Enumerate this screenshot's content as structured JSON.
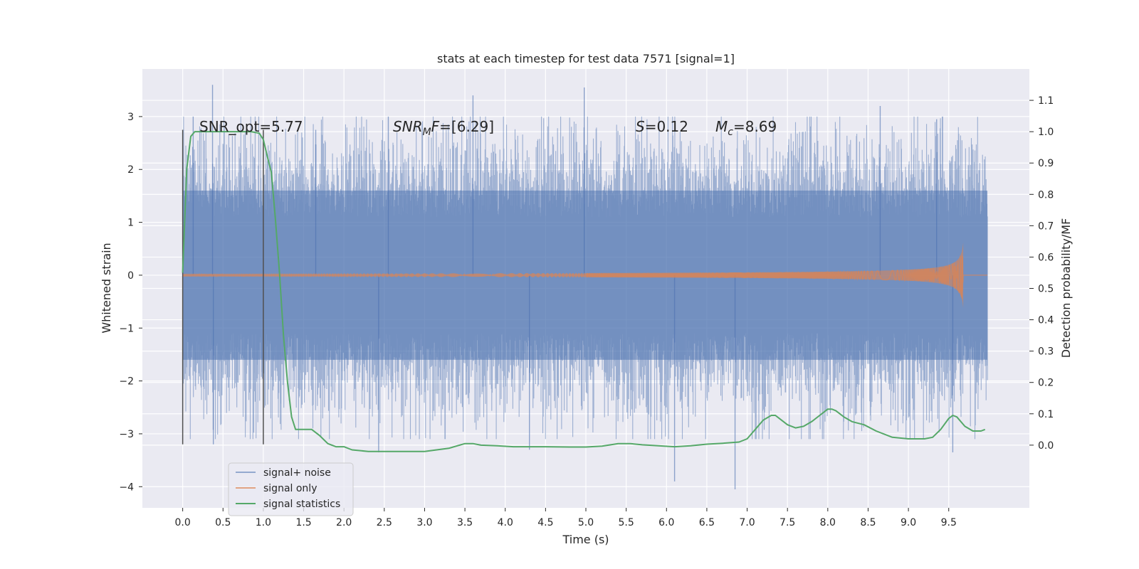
{
  "chart_data": {
    "type": "line",
    "title": "stats at each timestep for test data 7571 [signal=1]",
    "xlabel": "Time (s)",
    "ylabel_left": "Whitened strain",
    "ylabel_right": "Detection probability/MF",
    "xlim": [
      -0.5,
      10.5
    ],
    "ylim_left": [
      -4.4,
      3.9
    ],
    "ylim_right": [
      -0.2,
      1.2
    ],
    "x_ticks": [
      0.0,
      0.5,
      1.0,
      1.5,
      2.0,
      2.5,
      3.0,
      3.5,
      4.0,
      4.5,
      5.0,
      5.5,
      6.0,
      6.5,
      7.0,
      7.5,
      8.0,
      8.5,
      9.0,
      9.5
    ],
    "x_tick_labels": [
      "0.0",
      "0.5",
      "1.0",
      "1.5",
      "2.0",
      "2.5",
      "3.0",
      "3.5",
      "4.0",
      "4.5",
      "5.0",
      "5.5",
      "6.0",
      "6.5",
      "7.0",
      "7.5",
      "8.0",
      "8.5",
      "9.0",
      "9.5"
    ],
    "y_left_ticks": [
      3,
      2,
      1,
      0,
      -1,
      -2,
      -3,
      -4
    ],
    "y_left_tick_labels": [
      "3",
      "2",
      "1",
      "0",
      "−1",
      "−2",
      "−3",
      "−4"
    ],
    "y_right_ticks": [
      1.1,
      1.0,
      0.9,
      0.8,
      0.7,
      0.6,
      0.5,
      0.4,
      0.3,
      0.2,
      0.1,
      0.0
    ],
    "y_right_tick_labels": [
      "1.1",
      "1.0",
      "0.9",
      "0.8",
      "0.7",
      "0.6",
      "0.5",
      "0.4",
      "0.3",
      "0.2",
      "0.1",
      "0.0"
    ],
    "grid": true,
    "legend_position": "lower-left",
    "colors": {
      "noise": "#4c72b0",
      "signal": "#dd8452",
      "stat": "#55a868",
      "marker": "#505050",
      "background": "#eaeaf2"
    },
    "series": [
      {
        "name": "signal+ noise",
        "axis": "left",
        "x_range": [
          0.0,
          9.98
        ],
        "band_envelope_abs": 1.6,
        "peak_excursions": [
          {
            "x": 0.13,
            "y": 3.0
          },
          {
            "x": 0.37,
            "y": 3.6
          },
          {
            "x": 0.38,
            "y": -3.2
          },
          {
            "x": 1.65,
            "y": 2.75
          },
          {
            "x": 2.55,
            "y": 3.0
          },
          {
            "x": 2.43,
            "y": -3.35
          },
          {
            "x": 3.6,
            "y": 3.4
          },
          {
            "x": 4.3,
            "y": -3.3
          },
          {
            "x": 4.98,
            "y": 3.55
          },
          {
            "x": 6.1,
            "y": -3.9
          },
          {
            "x": 6.85,
            "y": -4.05
          },
          {
            "x": 8.65,
            "y": 3.2
          },
          {
            "x": 9.55,
            "y": -3.35
          },
          {
            "x": 9.35,
            "y": 2.95
          }
        ]
      },
      {
        "name": "signal only",
        "axis": "left",
        "x_range": [
          0.0,
          9.98
        ],
        "chirp_peak_time": 9.68,
        "chirp_peak_amplitude": 0.62
      },
      {
        "name": "signal statistics",
        "axis": "right",
        "x": [
          0.0,
          0.05,
          0.1,
          0.15,
          0.2,
          0.3,
          0.5,
          0.7,
          0.85,
          0.95,
          1.0,
          1.05,
          1.1,
          1.15,
          1.2,
          1.25,
          1.3,
          1.35,
          1.4,
          1.5,
          1.6,
          1.7,
          1.8,
          1.9,
          2.0,
          2.1,
          2.3,
          2.5,
          2.8,
          3.0,
          3.3,
          3.5,
          3.6,
          3.7,
          3.9,
          4.1,
          4.3,
          4.5,
          4.8,
          5.0,
          5.2,
          5.4,
          5.55,
          5.7,
          5.9,
          6.1,
          6.3,
          6.5,
          6.7,
          6.9,
          7.0,
          7.1,
          7.2,
          7.3,
          7.35,
          7.4,
          7.5,
          7.6,
          7.7,
          7.8,
          7.9,
          8.0,
          8.05,
          8.1,
          8.2,
          8.3,
          8.45,
          8.6,
          8.8,
          9.0,
          9.2,
          9.3,
          9.4,
          9.5,
          9.55,
          9.6,
          9.7,
          9.8,
          9.9,
          9.95
        ],
        "y": [
          0.55,
          0.88,
          0.985,
          1.0,
          1.0,
          1.0,
          1.0,
          1.0,
          1.0,
          0.995,
          0.975,
          0.92,
          0.87,
          0.72,
          0.55,
          0.35,
          0.2,
          0.09,
          0.05,
          0.05,
          0.05,
          0.03,
          0.005,
          -0.005,
          -0.005,
          -0.015,
          -0.02,
          -0.02,
          -0.02,
          -0.02,
          -0.01,
          0.005,
          0.005,
          0.0,
          -0.002,
          -0.005,
          -0.005,
          -0.005,
          -0.006,
          -0.006,
          -0.003,
          0.005,
          0.005,
          0.001,
          -0.002,
          -0.005,
          -0.002,
          0.003,
          0.006,
          0.01,
          0.02,
          0.05,
          0.08,
          0.095,
          0.095,
          0.085,
          0.065,
          0.055,
          0.06,
          0.075,
          0.095,
          0.115,
          0.115,
          0.11,
          0.09,
          0.075,
          0.065,
          0.045,
          0.025,
          0.02,
          0.02,
          0.025,
          0.05,
          0.085,
          0.095,
          0.09,
          0.06,
          0.045,
          0.045,
          0.05
        ]
      }
    ],
    "markers": [
      {
        "x": 0.0,
        "y_range": [
          -3.2,
          2.75
        ]
      },
      {
        "x": 1.0,
        "y_range": [
          -3.2,
          2.75
        ]
      }
    ],
    "annotations": {
      "snr_opt": "SNR_opt=5.77",
      "snr_mf_base": "SNR",
      "snr_mf_sub": "M",
      "snr_mf_mid": "F",
      "snr_mf_val": "=[6.29]",
      "s_name": "S",
      "s_val": "=0.12",
      "mc_base": "M",
      "mc_sub": "c",
      "mc_val": "=8.69"
    }
  }
}
